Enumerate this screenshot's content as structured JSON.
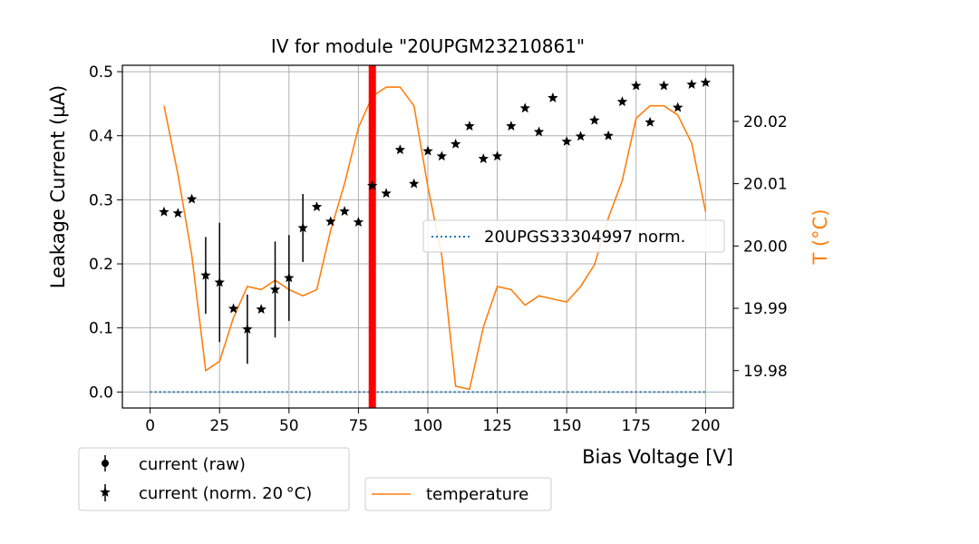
{
  "chart_data": {
    "type": "scatter",
    "title": "IV for module \"20UPGM23210861\"",
    "xlabel": "Bias Voltage [V]",
    "ylabel": "Leakage Current (µA)",
    "y2label": "T (°C)",
    "xlim": [
      -10,
      210
    ],
    "ylim": [
      -0.025,
      0.51
    ],
    "y2lim": [
      19.974,
      20.029
    ],
    "xticks": [
      0,
      25,
      50,
      75,
      100,
      125,
      150,
      175,
      200
    ],
    "xtick_labels": [
      "0",
      "25",
      "50",
      "75",
      "100",
      "125",
      "150",
      "175",
      "200"
    ],
    "yticks": [
      0.0,
      0.1,
      0.2,
      0.3,
      0.4,
      0.5
    ],
    "ytick_labels": [
      "0.0",
      "0.1",
      "0.2",
      "0.3",
      "0.4",
      "0.5"
    ],
    "y2ticks": [
      19.98,
      19.99,
      20.0,
      20.01,
      20.02
    ],
    "y2tick_labels": [
      "19.98",
      "19.99",
      "20.00",
      "20.01",
      "20.02"
    ],
    "grid": true,
    "vline": {
      "x": 80,
      "color": "#ff0000"
    },
    "colors": {
      "temperature": "#ff7f0e",
      "reference": "#1f77b4",
      "current": "#000000"
    },
    "series": [
      {
        "name": "current (norm. 20 °C)",
        "axis": "left",
        "marker": "star",
        "x": [
          5,
          10,
          15,
          20,
          25,
          30,
          35,
          40,
          45,
          50,
          55,
          60,
          65,
          70,
          75,
          80,
          85,
          90,
          95,
          100,
          105,
          110,
          115,
          120,
          125,
          130,
          135,
          140,
          145,
          150,
          155,
          160,
          165,
          170,
          175,
          180,
          185,
          190,
          195,
          200
        ],
        "y": [
          0.281,
          0.279,
          0.301,
          0.182,
          0.171,
          0.13,
          0.098,
          0.129,
          0.16,
          0.178,
          0.256,
          0.289,
          0.266,
          0.282,
          0.265,
          0.322,
          0.31,
          0.378,
          0.325,
          0.376,
          0.368,
          0.387,
          0.415,
          0.364,
          0.368,
          0.415,
          0.443,
          0.406,
          0.459,
          0.391,
          0.399,
          0.424,
          0.4,
          0.453,
          0.478,
          0.421,
          0.478,
          0.444,
          0.48,
          0.483
        ],
        "yerr": [
          0,
          0,
          0,
          0.06,
          0.093,
          0,
          0.054,
          0,
          0.075,
          0.067,
          0.053,
          0,
          0,
          0,
          0,
          0,
          0,
          0,
          0,
          0,
          0,
          0,
          0,
          0,
          0,
          0,
          0,
          0,
          0,
          0,
          0,
          0,
          0,
          0,
          0,
          0,
          0,
          0,
          0,
          0
        ]
      },
      {
        "name": "temperature",
        "axis": "right",
        "x": [
          5,
          10,
          15,
          20,
          25,
          30,
          35,
          40,
          45,
          50,
          55,
          60,
          65,
          70,
          75,
          80,
          85,
          90,
          95,
          100,
          105,
          110,
          115,
          120,
          125,
          130,
          135,
          140,
          145,
          150,
          155,
          160,
          165,
          170,
          175,
          180,
          185,
          190,
          195,
          200
        ],
        "y": [
          20.0225,
          20.0115,
          19.9985,
          19.98,
          19.9815,
          19.9885,
          19.9935,
          19.993,
          19.9945,
          19.993,
          19.992,
          19.993,
          20.0025,
          20.01,
          20.019,
          20.024,
          20.0255,
          20.0255,
          20.0225,
          20.0095,
          19.9985,
          19.9775,
          19.977,
          19.987,
          19.9935,
          19.993,
          19.9905,
          19.992,
          19.9915,
          19.991,
          19.9935,
          19.997,
          20.0045,
          20.0105,
          20.0205,
          20.0225,
          20.0225,
          20.021,
          20.0165,
          20.0055
        ]
      },
      {
        "name": "20UPGS33304997 norm.",
        "axis": "left",
        "style": "dotted",
        "x": [
          0,
          200
        ],
        "y": [
          0.0,
          0.0
        ]
      }
    ],
    "legend_left": [
      "current (raw)",
      "current (norm. 20 °C)"
    ],
    "legend_temperature": "temperature",
    "legend_reference": "20UPGS33304997 norm."
  }
}
